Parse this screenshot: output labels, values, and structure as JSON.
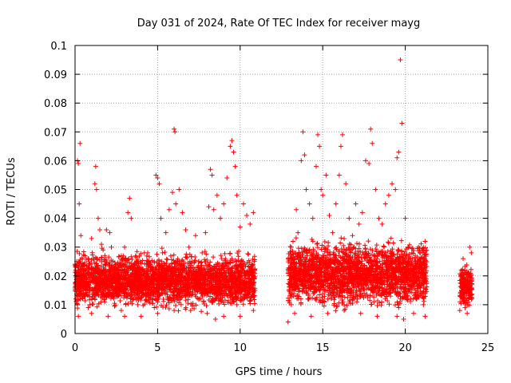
{
  "chart_data": {
    "type": "scatter",
    "title": "Day 031 of 2024, Rate Of TEC Index for receiver mayg",
    "xlabel": "GPS time / hours",
    "ylabel": "ROTI / TECUs",
    "xlim": [
      0,
      25
    ],
    "ylim": [
      0,
      0.1
    ],
    "xticks": [
      0,
      5,
      10,
      15,
      20,
      25
    ],
    "yticks": [
      0,
      0.01,
      0.02,
      0.03,
      0.04,
      0.05,
      0.06,
      0.07,
      0.08,
      0.09,
      0.1
    ],
    "xtick_labels": [
      "0",
      "5",
      "10",
      "15",
      "20",
      "25"
    ],
    "ytick_labels": [
      "0",
      "0.01",
      "0.02",
      "0.03",
      "0.04",
      "0.05",
      "0.06",
      "0.07",
      "0.08",
      "0.09",
      "0.1"
    ],
    "grid": true,
    "marker": "+",
    "marker_color": "#ff0000",
    "series": [
      {
        "points": [
          [
            0.05,
            0.012
          ],
          [
            0.1,
            0.025
          ],
          [
            0.15,
            0.06
          ],
          [
            0.2,
            0.059
          ],
          [
            0.25,
            0.045
          ],
          [
            0.3,
            0.066
          ],
          [
            0.35,
            0.034
          ],
          [
            0.4,
            0.022
          ],
          [
            0.5,
            0.015
          ],
          [
            0.6,
            0.027
          ],
          [
            0.7,
            0.018
          ],
          [
            0.8,
            0.026
          ],
          [
            0.9,
            0.01
          ],
          [
            1.0,
            0.033
          ],
          [
            1.1,
            0.021
          ],
          [
            1.2,
            0.052
          ],
          [
            1.25,
            0.058
          ],
          [
            1.3,
            0.05
          ],
          [
            1.4,
            0.04
          ],
          [
            1.5,
            0.036
          ],
          [
            1.6,
            0.031
          ],
          [
            1.7,
            0.029
          ],
          [
            1.8,
            0.024
          ],
          [
            1.9,
            0.036
          ],
          [
            2.0,
            0.019
          ],
          [
            2.1,
            0.035
          ],
          [
            2.2,
            0.03
          ],
          [
            2.4,
            0.022
          ],
          [
            2.6,
            0.018
          ],
          [
            2.8,
            0.027
          ],
          [
            3.0,
            0.03
          ],
          [
            3.2,
            0.042
          ],
          [
            3.3,
            0.047
          ],
          [
            3.4,
            0.04
          ],
          [
            3.6,
            0.021
          ],
          [
            3.8,
            0.025
          ],
          [
            4.0,
            0.018
          ],
          [
            4.2,
            0.028
          ],
          [
            4.4,
            0.028
          ],
          [
            4.6,
            0.02
          ],
          [
            4.8,
            0.025
          ],
          [
            4.9,
            0.055
          ],
          [
            5.0,
            0.054
          ],
          [
            5.1,
            0.052
          ],
          [
            5.2,
            0.04
          ],
          [
            5.3,
            0.028
          ],
          [
            5.5,
            0.035
          ],
          [
            5.7,
            0.043
          ],
          [
            5.9,
            0.049
          ],
          [
            6.0,
            0.071
          ],
          [
            6.05,
            0.07
          ],
          [
            6.1,
            0.045
          ],
          [
            6.3,
            0.05
          ],
          [
            6.5,
            0.042
          ],
          [
            6.7,
            0.036
          ],
          [
            6.9,
            0.03
          ],
          [
            7.1,
            0.025
          ],
          [
            7.3,
            0.034
          ],
          [
            7.5,
            0.025
          ],
          [
            7.7,
            0.028
          ],
          [
            7.9,
            0.035
          ],
          [
            8.1,
            0.044
          ],
          [
            8.2,
            0.057
          ],
          [
            8.3,
            0.055
          ],
          [
            8.4,
            0.043
          ],
          [
            8.6,
            0.048
          ],
          [
            8.8,
            0.04
          ],
          [
            9.0,
            0.045
          ],
          [
            9.2,
            0.054
          ],
          [
            9.4,
            0.065
          ],
          [
            9.5,
            0.067
          ],
          [
            9.6,
            0.063
          ],
          [
            9.7,
            0.058
          ],
          [
            9.8,
            0.048
          ],
          [
            10.0,
            0.037
          ],
          [
            10.2,
            0.045
          ],
          [
            10.4,
            0.041
          ],
          [
            10.6,
            0.038
          ],
          [
            10.8,
            0.042
          ],
          [
            0.3,
            0.013
          ],
          [
            0.8,
            0.009
          ],
          [
            1.3,
            0.016
          ],
          [
            1.8,
            0.011
          ],
          [
            2.3,
            0.014
          ],
          [
            2.8,
            0.008
          ],
          [
            3.3,
            0.017
          ],
          [
            3.8,
            0.01
          ],
          [
            4.3,
            0.013
          ],
          [
            4.8,
            0.009
          ],
          [
            5.3,
            0.018
          ],
          [
            5.8,
            0.012
          ],
          [
            6.3,
            0.02
          ],
          [
            6.8,
            0.014
          ],
          [
            7.3,
            0.016
          ],
          [
            7.8,
            0.011
          ],
          [
            8.3,
            0.02
          ],
          [
            8.8,
            0.013
          ],
          [
            9.3,
            0.022
          ],
          [
            9.8,
            0.01
          ],
          [
            10.3,
            0.015
          ],
          [
            10.8,
            0.008
          ],
          [
            0.2,
            0.006
          ],
          [
            1.0,
            0.007
          ],
          [
            2.0,
            0.006
          ],
          [
            3.0,
            0.006
          ],
          [
            4.0,
            0.006
          ],
          [
            5.0,
            0.007
          ],
          [
            6.0,
            0.008
          ],
          [
            7.0,
            0.008
          ],
          [
            8.0,
            0.007
          ],
          [
            9.0,
            0.006
          ],
          [
            10.0,
            0.006
          ],
          [
            8.5,
            0.005
          ],
          [
            12.9,
            0.004
          ],
          [
            13.0,
            0.018
          ],
          [
            13.2,
            0.032
          ],
          [
            13.4,
            0.043
          ],
          [
            13.5,
            0.035
          ],
          [
            13.7,
            0.06
          ],
          [
            13.8,
            0.07
          ],
          [
            13.9,
            0.062
          ],
          [
            14.0,
            0.05
          ],
          [
            14.2,
            0.045
          ],
          [
            14.4,
            0.04
          ],
          [
            14.6,
            0.058
          ],
          [
            14.7,
            0.069
          ],
          [
            14.8,
            0.065
          ],
          [
            14.9,
            0.05
          ],
          [
            15.0,
            0.048
          ],
          [
            15.2,
            0.055
          ],
          [
            15.4,
            0.041
          ],
          [
            15.6,
            0.035
          ],
          [
            15.8,
            0.045
          ],
          [
            16.0,
            0.055
          ],
          [
            16.1,
            0.065
          ],
          [
            16.2,
            0.069
          ],
          [
            16.4,
            0.052
          ],
          [
            16.6,
            0.04
          ],
          [
            16.8,
            0.034
          ],
          [
            17.0,
            0.045
          ],
          [
            17.2,
            0.038
          ],
          [
            17.4,
            0.042
          ],
          [
            17.6,
            0.06
          ],
          [
            17.8,
            0.059
          ],
          [
            17.9,
            0.071
          ],
          [
            18.0,
            0.066
          ],
          [
            18.2,
            0.05
          ],
          [
            18.4,
            0.04
          ],
          [
            18.6,
            0.038
          ],
          [
            18.8,
            0.045
          ],
          [
            19.0,
            0.048
          ],
          [
            19.2,
            0.052
          ],
          [
            19.4,
            0.05
          ],
          [
            19.5,
            0.061
          ],
          [
            19.6,
            0.063
          ],
          [
            19.7,
            0.095
          ],
          [
            19.8,
            0.073
          ],
          [
            20.0,
            0.04
          ],
          [
            20.2,
            0.03
          ],
          [
            20.4,
            0.028
          ],
          [
            20.6,
            0.026
          ],
          [
            20.8,
            0.03
          ],
          [
            21.0,
            0.029
          ],
          [
            21.2,
            0.032
          ],
          [
            13.1,
            0.01
          ],
          [
            13.6,
            0.015
          ],
          [
            14.1,
            0.012
          ],
          [
            14.6,
            0.018
          ],
          [
            15.1,
            0.011
          ],
          [
            15.6,
            0.016
          ],
          [
            16.1,
            0.013
          ],
          [
            16.6,
            0.019
          ],
          [
            17.1,
            0.012
          ],
          [
            17.6,
            0.017
          ],
          [
            18.1,
            0.011
          ],
          [
            18.6,
            0.018
          ],
          [
            19.1,
            0.013
          ],
          [
            19.6,
            0.009
          ],
          [
            20.1,
            0.012
          ],
          [
            20.6,
            0.015
          ],
          [
            21.1,
            0.01
          ],
          [
            13.3,
            0.007
          ],
          [
            14.3,
            0.006
          ],
          [
            15.3,
            0.007
          ],
          [
            16.3,
            0.008
          ],
          [
            17.3,
            0.007
          ],
          [
            18.3,
            0.006
          ],
          [
            19.5,
            0.006
          ],
          [
            19.9,
            0.005
          ],
          [
            20.5,
            0.007
          ],
          [
            21.2,
            0.006
          ],
          [
            23.3,
            0.008
          ],
          [
            23.4,
            0.015
          ],
          [
            23.5,
            0.026
          ],
          [
            23.6,
            0.022
          ],
          [
            23.7,
            0.012
          ],
          [
            23.8,
            0.01
          ],
          [
            23.9,
            0.03
          ],
          [
            24.0,
            0.028
          ],
          [
            23.45,
            0.018
          ],
          [
            23.75,
            0.007
          ],
          [
            23.95,
            0.02
          ]
        ]
      }
    ],
    "density_bands": [
      {
        "x0": 0.0,
        "x1": 10.9,
        "y_lo": 0.007,
        "y_hi": 0.027
      },
      {
        "x0": 12.9,
        "x1": 21.3,
        "y_lo": 0.007,
        "y_hi": 0.031
      },
      {
        "x0": 23.3,
        "x1": 24.05,
        "y_lo": 0.007,
        "y_hi": 0.023
      }
    ]
  }
}
